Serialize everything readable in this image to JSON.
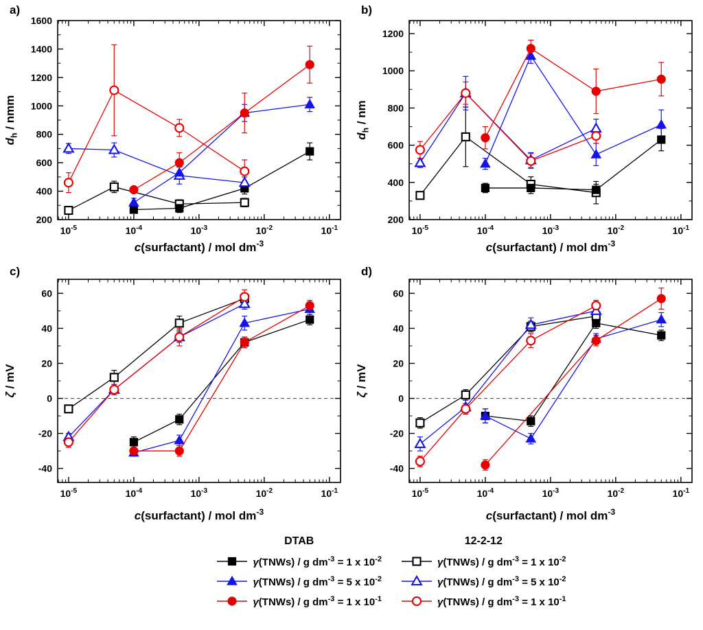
{
  "figure": {
    "background": "#ffffff"
  },
  "series_styles": {
    "dtab_1e2": {
      "marker": "square",
      "filled": true,
      "color": "#000000"
    },
    "dtab_5e2": {
      "marker": "triangle",
      "filled": true,
      "color": "#1414e8"
    },
    "dtab_1e1": {
      "marker": "circle",
      "filled": true,
      "color": "#e60000"
    },
    "gem_1e2": {
      "marker": "square",
      "filled": false,
      "color": "#000000"
    },
    "gem_5e2": {
      "marker": "triangle",
      "filled": false,
      "color": "#1414e8"
    },
    "gem_1e1": {
      "marker": "circle",
      "filled": false,
      "color": "#e60000"
    }
  },
  "chart_data": [
    {
      "type": "scatter",
      "panel_label": "a)",
      "xlabel_parts": [
        {
          "t": "c",
          "italic": true
        },
        {
          "t": "(surfactant) / mol dm"
        },
        {
          "t": "-3",
          "sup": true
        }
      ],
      "ylabel_parts": [
        {
          "t": "d",
          "italic": true
        },
        {
          "t": "h",
          "sub": true
        },
        {
          "t": " / nmm"
        }
      ],
      "xlim": [
        6.8e-06,
        0.148
      ],
      "ylim": [
        200,
        1600
      ],
      "yticks": [
        200,
        400,
        600,
        800,
        1000,
        1200,
        1400,
        1600
      ],
      "yminor": 100,
      "xticks": [
        {
          "v": 1e-05,
          "sup": "-5"
        },
        {
          "v": 0.0001,
          "sup": "-4"
        },
        {
          "v": 0.001,
          "sup": "-3"
        },
        {
          "v": 0.01,
          "sup": "-2"
        },
        {
          "v": 0.1,
          "sup": "-1"
        }
      ],
      "zero_line": false,
      "series": [
        {
          "ref": "gem_1e2",
          "x": [
            1e-05,
            5e-05,
            0.0005,
            0.005
          ],
          "y": [
            265,
            430,
            310,
            320
          ],
          "err": [
            25,
            40,
            30,
            30
          ]
        },
        {
          "ref": "dtab_1e2",
          "x": [
            0.0001,
            0.0005,
            0.005,
            0.05
          ],
          "y": [
            270,
            280,
            420,
            680
          ],
          "err": [
            0,
            30,
            40,
            60
          ]
        },
        {
          "ref": "gem_5e2",
          "x": [
            1e-05,
            5e-05,
            0.0005,
            0.005
          ],
          "y": [
            700,
            690,
            510,
            460
          ],
          "err": [
            35,
            50,
            60,
            40
          ]
        },
        {
          "ref": "dtab_5e2",
          "x": [
            0.0001,
            0.0005,
            0.005,
            0.05
          ],
          "y": [
            320,
            530,
            950,
            1010
          ],
          "err": [
            30,
            40,
            60,
            50
          ]
        },
        {
          "ref": "gem_1e1",
          "x": [
            1e-05,
            5e-05,
            0.0005,
            0.005
          ],
          "y": [
            460,
            1110,
            845,
            540
          ],
          "err": [
            70,
            320,
            60,
            80
          ]
        },
        {
          "ref": "dtab_1e1",
          "x": [
            0.0001,
            0.0005,
            0.005,
            0.05
          ],
          "y": [
            410,
            600,
            950,
            1290
          ],
          "err": [
            20,
            70,
            140,
            130
          ]
        }
      ]
    },
    {
      "type": "scatter",
      "panel_label": "b)",
      "xlabel_parts": [
        {
          "t": "c",
          "italic": true
        },
        {
          "t": "(surfactant) / mol dm"
        },
        {
          "t": "-3",
          "sup": true
        }
      ],
      "ylabel_parts": [
        {
          "t": "d",
          "italic": true
        },
        {
          "t": "h",
          "sub": true
        },
        {
          "t": " / nm"
        }
      ],
      "xlim": [
        6.8e-06,
        0.148
      ],
      "ylim": [
        200,
        1270
      ],
      "yticks": [
        200,
        400,
        600,
        800,
        1000,
        1200
      ],
      "yminor": 100,
      "xticks": [
        {
          "v": 1e-05,
          "sup": "-5"
        },
        {
          "v": 0.0001,
          "sup": "-4"
        },
        {
          "v": 0.001,
          "sup": "-3"
        },
        {
          "v": 0.01,
          "sup": "-2"
        },
        {
          "v": 0.1,
          "sup": "-1"
        }
      ],
      "zero_line": false,
      "series": [
        {
          "ref": "gem_1e2",
          "x": [
            1e-05,
            5e-05,
            0.0005,
            0.005
          ],
          "y": [
            330,
            645,
            390,
            345
          ],
          "err": [
            20,
            160,
            40,
            60
          ]
        },
        {
          "ref": "dtab_1e2",
          "x": [
            0.0001,
            0.0005,
            0.005,
            0.05
          ],
          "y": [
            370,
            370,
            360,
            630
          ],
          "err": [
            25,
            30,
            30,
            60
          ]
        },
        {
          "ref": "gem_5e2",
          "x": [
            1e-05,
            5e-05,
            0.0005,
            0.005
          ],
          "y": [
            505,
            880,
            520,
            690
          ],
          "err": [
            25,
            90,
            40,
            50
          ]
        },
        {
          "ref": "dtab_5e2",
          "x": [
            0.0001,
            0.0005,
            0.005,
            0.05
          ],
          "y": [
            500,
            1080,
            550,
            710
          ],
          "err": [
            30,
            40,
            60,
            80
          ]
        },
        {
          "ref": "gem_1e1",
          "x": [
            1e-05,
            5e-05,
            0.0005,
            0.005
          ],
          "y": [
            575,
            880,
            515,
            650
          ],
          "err": [
            45,
            60,
            40,
            40
          ]
        },
        {
          "ref": "dtab_1e1",
          "x": [
            0.0001,
            0.0005,
            0.005,
            0.05
          ],
          "y": [
            640,
            1120,
            890,
            955
          ],
          "err": [
            60,
            45,
            120,
            90
          ]
        }
      ]
    },
    {
      "type": "scatter",
      "panel_label": "c)",
      "xlabel_parts": [
        {
          "t": "c",
          "italic": true
        },
        {
          "t": "(surfactant) / mol dm"
        },
        {
          "t": "-3",
          "sup": true
        }
      ],
      "ylabel_parts": [
        {
          "t": "ζ",
          "italic": true
        },
        {
          "t": " / mV"
        }
      ],
      "xlim": [
        6.8e-06,
        0.148
      ],
      "ylim": [
        -48,
        68
      ],
      "yticks": [
        -40,
        -20,
        0,
        20,
        40,
        60
      ],
      "yminor": 10,
      "xticks": [
        {
          "v": 1e-05,
          "sup": "-5"
        },
        {
          "v": 0.0001,
          "sup": "-4"
        },
        {
          "v": 0.001,
          "sup": "-3"
        },
        {
          "v": 0.01,
          "sup": "-2"
        },
        {
          "v": 0.1,
          "sup": "-1"
        }
      ],
      "zero_line": true,
      "series": [
        {
          "ref": "gem_1e2",
          "x": [
            1e-05,
            5e-05,
            0.0005,
            0.005
          ],
          "y": [
            -6,
            12,
            43,
            57
          ],
          "err": [
            2,
            4,
            4,
            3
          ]
        },
        {
          "ref": "dtab_1e2",
          "x": [
            0.0001,
            0.0005,
            0.005,
            0.05
          ],
          "y": [
            -25,
            -12,
            32,
            45
          ],
          "err": [
            3,
            3,
            3,
            3
          ]
        },
        {
          "ref": "gem_5e2",
          "x": [
            1e-05,
            5e-05,
            0.0005,
            0.005
          ],
          "y": [
            -22,
            5,
            35,
            54
          ],
          "err": [
            2,
            3,
            3,
            3
          ]
        },
        {
          "ref": "dtab_5e2",
          "x": [
            0.0001,
            0.0005,
            0.005,
            0.05
          ],
          "y": [
            -31,
            -24,
            43,
            51
          ],
          "err": [
            2,
            3,
            4,
            3
          ]
        },
        {
          "ref": "gem_1e1",
          "x": [
            1e-05,
            5e-05,
            0.0005,
            0.005
          ],
          "y": [
            -25,
            5,
            35,
            58
          ],
          "err": [
            3,
            3,
            5,
            4
          ]
        },
        {
          "ref": "dtab_1e1",
          "x": [
            0.0001,
            0.0005,
            0.005,
            0.05
          ],
          "y": [
            -30,
            -30,
            32,
            53
          ],
          "err": [
            2,
            3,
            3,
            3
          ]
        }
      ]
    },
    {
      "type": "scatter",
      "panel_label": "d)",
      "xlabel_parts": [
        {
          "t": "c",
          "italic": true
        },
        {
          "t": "(surfactant) / mol dm"
        },
        {
          "t": "-3",
          "sup": true
        }
      ],
      "ylabel_parts": [
        {
          "t": "ζ",
          "italic": true
        },
        {
          "t": " / mV"
        }
      ],
      "xlim": [
        6.8e-06,
        0.148
      ],
      "ylim": [
        -48,
        68
      ],
      "yticks": [
        -40,
        -20,
        0,
        20,
        40,
        60
      ],
      "yminor": 10,
      "xticks": [
        {
          "v": 1e-05,
          "sup": "-5"
        },
        {
          "v": 0.0001,
          "sup": "-4"
        },
        {
          "v": 0.001,
          "sup": "-3"
        },
        {
          "v": 0.01,
          "sup": "-2"
        },
        {
          "v": 0.1,
          "sup": "-1"
        }
      ],
      "zero_line": true,
      "series": [
        {
          "ref": "gem_1e2",
          "x": [
            1e-05,
            5e-05,
            0.0005,
            0.005
          ],
          "y": [
            -14,
            2,
            41,
            47
          ],
          "err": [
            3,
            3,
            3,
            3
          ]
        },
        {
          "ref": "dtab_1e2",
          "x": [
            0.0001,
            0.0005,
            0.005,
            0.05
          ],
          "y": [
            -10,
            -13,
            43,
            36
          ],
          "err": [
            4,
            3,
            3,
            3
          ]
        },
        {
          "ref": "gem_5e2",
          "x": [
            1e-05,
            5e-05,
            0.0005,
            0.005
          ],
          "y": [
            -26,
            -5,
            42,
            50
          ],
          "err": [
            4,
            4,
            4,
            4
          ]
        },
        {
          "ref": "dtab_5e2",
          "x": [
            0.0001,
            0.0005,
            0.005,
            0.05
          ],
          "y": [
            -10,
            -23,
            34,
            45
          ],
          "err": [
            4,
            3,
            3,
            4
          ]
        },
        {
          "ref": "gem_1e1",
          "x": [
            1e-05,
            5e-05,
            0.0005,
            0.005
          ],
          "y": [
            -36,
            -6,
            33,
            53
          ],
          "err": [
            3,
            3,
            4,
            3
          ]
        },
        {
          "ref": "dtab_1e1",
          "x": [
            0.0001,
            0.005,
            0.05
          ],
          "y": [
            -38,
            33,
            57
          ],
          "err": [
            3,
            3,
            6
          ]
        }
      ]
    }
  ],
  "legend": {
    "columns": [
      {
        "header": "DTAB",
        "items": [
          {
            "style": "dtab_1e2",
            "label_parts": [
              {
                "t": "γ",
                "italic": true
              },
              {
                "t": "(TNWs) / g dm"
              },
              {
                "t": "-3",
                "sup": true
              },
              {
                "t": " = 1 x 10"
              },
              {
                "t": "-2",
                "sup": true
              }
            ]
          },
          {
            "style": "dtab_5e2",
            "label_parts": [
              {
                "t": "γ",
                "italic": true
              },
              {
                "t": "(TNWs) / g dm"
              },
              {
                "t": "-3",
                "sup": true
              },
              {
                "t": " = 5 x 10"
              },
              {
                "t": "-2",
                "sup": true
              }
            ]
          },
          {
            "style": "dtab_1e1",
            "label_parts": [
              {
                "t": "γ",
                "italic": true
              },
              {
                "t": "(TNWs) / g dm"
              },
              {
                "t": "-3",
                "sup": true
              },
              {
                "t": " = 1 x 10"
              },
              {
                "t": "-1",
                "sup": true
              }
            ]
          }
        ]
      },
      {
        "header": "12-2-12",
        "items": [
          {
            "style": "gem_1e2",
            "label_parts": [
              {
                "t": "γ",
                "italic": true
              },
              {
                "t": "(TNWs) / g dm"
              },
              {
                "t": "-3",
                "sup": true
              },
              {
                "t": " = 1 x 10"
              },
              {
                "t": "-2",
                "sup": true
              }
            ]
          },
          {
            "style": "gem_5e2",
            "label_parts": [
              {
                "t": "γ",
                "italic": true
              },
              {
                "t": "(TNWs) / g dm"
              },
              {
                "t": "-3",
                "sup": true
              },
              {
                "t": " = 5 x 10"
              },
              {
                "t": "-2",
                "sup": true
              }
            ]
          },
          {
            "style": "gem_1e1",
            "label_parts": [
              {
                "t": "γ",
                "italic": true
              },
              {
                "t": "(TNWs) / g dm"
              },
              {
                "t": "-3",
                "sup": true
              },
              {
                "t": " = 1 x 10"
              },
              {
                "t": "-1",
                "sup": true
              }
            ]
          }
        ]
      }
    ]
  }
}
